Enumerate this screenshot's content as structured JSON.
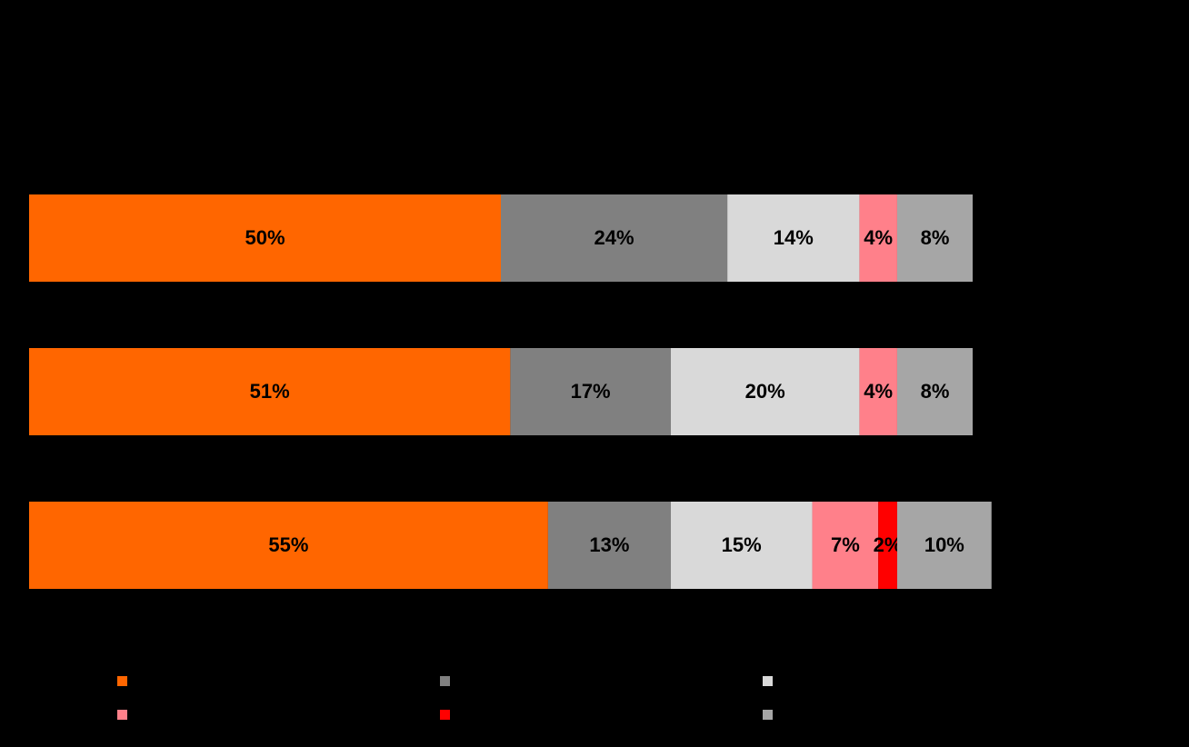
{
  "chart_data": {
    "type": "stacked-bar-horizontal",
    "categories": [
      null,
      null,
      null
    ],
    "xlim": [
      0,
      100
    ],
    "series": [
      {
        "color": "#ff6600",
        "values": [
          50,
          51,
          55
        ],
        "value_labels": [
          "50%",
          "51%",
          "55%"
        ]
      },
      {
        "color": "#808080",
        "values": [
          24,
          17,
          13
        ],
        "value_labels": [
          "24%",
          "17%",
          "13%"
        ]
      },
      {
        "color": "#d9d9d9",
        "values": [
          14,
          20,
          15
        ],
        "value_labels": [
          "14%",
          "20%",
          "15%"
        ]
      },
      {
        "color": "#ff808a",
        "values": [
          4,
          4,
          7
        ],
        "value_labels": [
          "4%",
          "4%",
          "7%"
        ]
      },
      {
        "color": "#ff0000",
        "values": [
          null,
          null,
          2
        ],
        "value_labels": [
          null,
          null,
          "2%"
        ]
      },
      {
        "color": "#a6a6a6",
        "values": [
          8,
          8,
          10
        ],
        "value_labels": [
          "8%",
          "8%",
          "10%"
        ]
      }
    ]
  }
}
